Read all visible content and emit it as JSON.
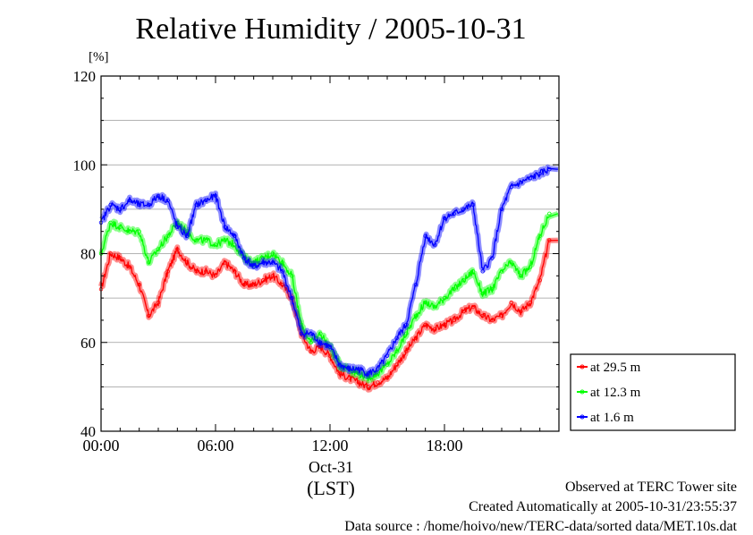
{
  "chart_data": {
    "type": "line",
    "title": "Relative Humidity / 2005-10-31",
    "ylabel": "[%]",
    "xlabel": "(LST)",
    "x_date_label": "Oct-31",
    "ylim": [
      40,
      120
    ],
    "yticks": [
      40,
      60,
      80,
      100,
      120
    ],
    "xlim_hours": [
      0,
      24
    ],
    "xtick_labels": [
      "00:00",
      "06:00",
      "12:00",
      "18:00"
    ],
    "xtick_hours": [
      0,
      6,
      12,
      18
    ],
    "grid": true,
    "legend_position": "right-bottom",
    "x_hours": [
      0,
      0.5,
      1,
      1.5,
      2,
      2.5,
      3,
      3.5,
      4,
      4.5,
      5,
      5.5,
      6,
      6.5,
      7,
      7.5,
      8,
      8.5,
      9,
      9.5,
      10,
      10.5,
      11,
      11.5,
      12,
      12.5,
      13,
      13.5,
      14,
      14.5,
      15,
      15.5,
      16,
      16.5,
      17,
      17.5,
      18,
      18.5,
      19,
      19.5,
      20,
      20.5,
      21,
      21.5,
      22,
      22.5,
      23,
      23.5
    ],
    "series": [
      {
        "name": "at 29.5 m",
        "color": "#ff0000",
        "values": [
          72,
          80,
          79,
          77,
          73,
          66,
          69,
          76,
          81,
          78,
          76,
          76,
          75,
          78,
          76,
          73,
          73,
          74,
          75,
          73,
          70,
          62,
          58,
          59,
          57,
          53,
          52,
          51,
          50,
          51,
          52,
          55,
          58,
          61,
          64,
          63,
          64,
          65,
          67,
          68,
          66,
          65,
          66,
          69,
          67,
          69,
          74,
          83
        ]
      },
      {
        "name": "at 12.3 m",
        "color": "#00ff00",
        "values": [
          80,
          87,
          86,
          85,
          85,
          78,
          81,
          84,
          87,
          85,
          83,
          83,
          82,
          83,
          82,
          79,
          78,
          79,
          80,
          78,
          75,
          64,
          60,
          62,
          59,
          55,
          54,
          53,
          52,
          53,
          55,
          58,
          62,
          66,
          69,
          68,
          70,
          72,
          74,
          76,
          71,
          72,
          76,
          78,
          75,
          77,
          84,
          89
        ]
      },
      {
        "name": "at 1.6 m",
        "color": "#0000ff",
        "values": [
          87,
          91,
          90,
          92,
          91,
          91,
          93,
          92,
          86,
          84,
          91,
          92,
          93,
          86,
          84,
          79,
          77,
          78,
          78,
          76,
          70,
          62,
          62,
          60,
          59,
          55,
          54,
          54,
          53,
          54,
          57,
          61,
          64,
          73,
          84,
          82,
          88,
          89,
          90,
          91,
          76,
          79,
          90,
          95,
          96,
          97,
          98,
          99
        ]
      }
    ]
  },
  "footer": {
    "line1": "Observed at TERC Tower site",
    "line2": "Created Automatically at 2005-10-31/23:55:37",
    "line3": "Data source : /home/hoivo/new/TERC-data/sorted  data/MET.10s.dat"
  }
}
